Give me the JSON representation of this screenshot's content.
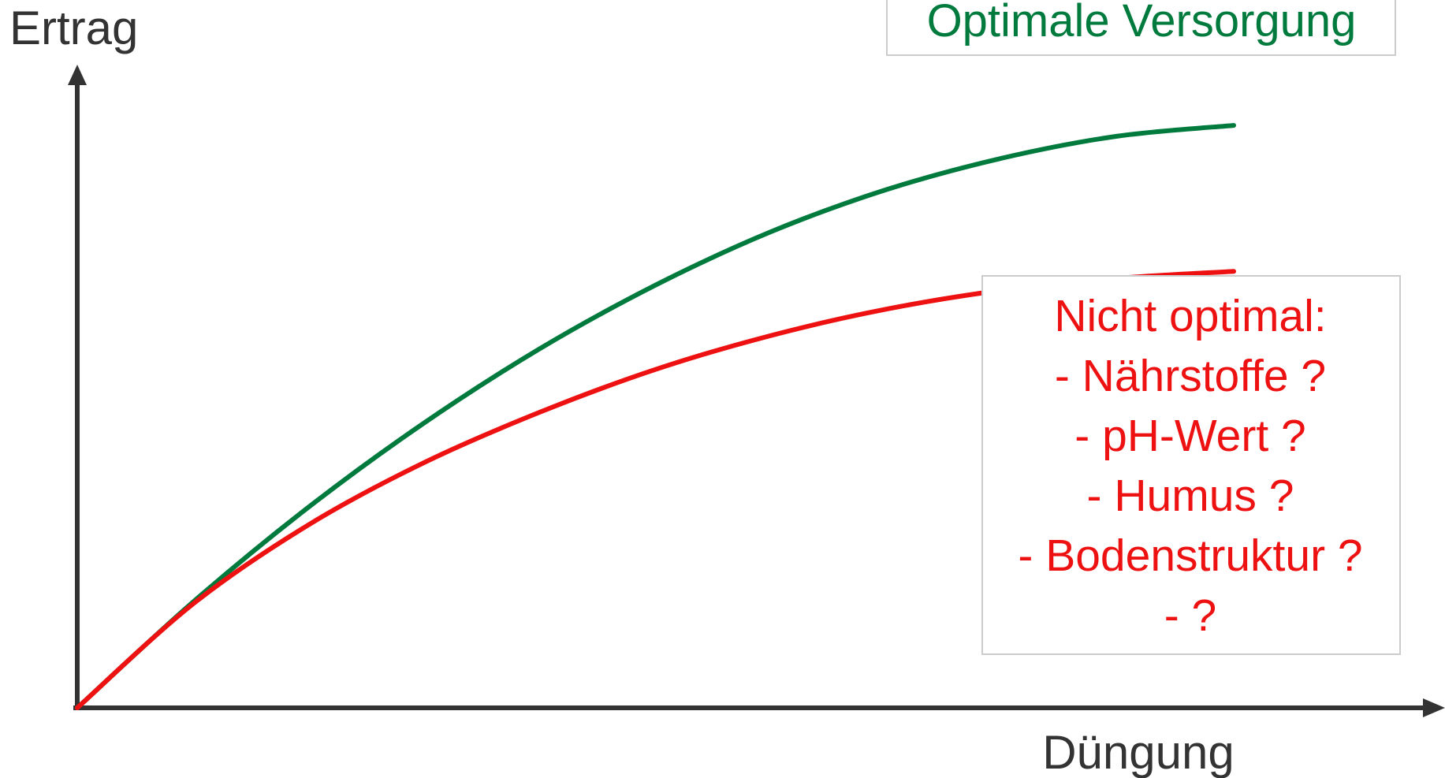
{
  "chart_data": {
    "type": "line",
    "xlabel": "Düngung",
    "ylabel": "Ertrag",
    "xlim": [
      0,
      1
    ],
    "ylim": [
      0,
      1
    ],
    "grid": false,
    "axis_ticks": false,
    "series": [
      {
        "name": "Optimale Versorgung",
        "color": "#007a3d",
        "x": [
          0,
          0.1,
          0.2,
          0.3,
          0.4,
          0.5,
          0.6,
          0.7,
          0.8,
          0.9,
          1.0
        ],
        "y": [
          0,
          0.168,
          0.319,
          0.453,
          0.571,
          0.672,
          0.757,
          0.824,
          0.874,
          0.909,
          0.926
        ]
      },
      {
        "name": "",
        "color": "#ee1111",
        "x": [
          0,
          0.1,
          0.2,
          0.3,
          0.4,
          0.5,
          0.6,
          0.7,
          0.8,
          0.9,
          1.0
        ],
        "y": [
          0,
          0.165,
          0.291,
          0.39,
          0.47,
          0.538,
          0.592,
          0.634,
          0.664,
          0.683,
          0.694
        ]
      }
    ],
    "annotations": {
      "green": {
        "text": "Optimale Versorgung",
        "color": "#007a3d",
        "border": "#cccccc"
      },
      "red": {
        "color": "#ee1111",
        "border": "#cccccc",
        "lines": [
          "Nicht optimal:",
          "- Nährstoffe ?",
          "- pH-Wert ?",
          "- Humus ?",
          "- Bodenstruktur ?",
          "- ?"
        ]
      }
    },
    "axis_color": "#333333"
  }
}
